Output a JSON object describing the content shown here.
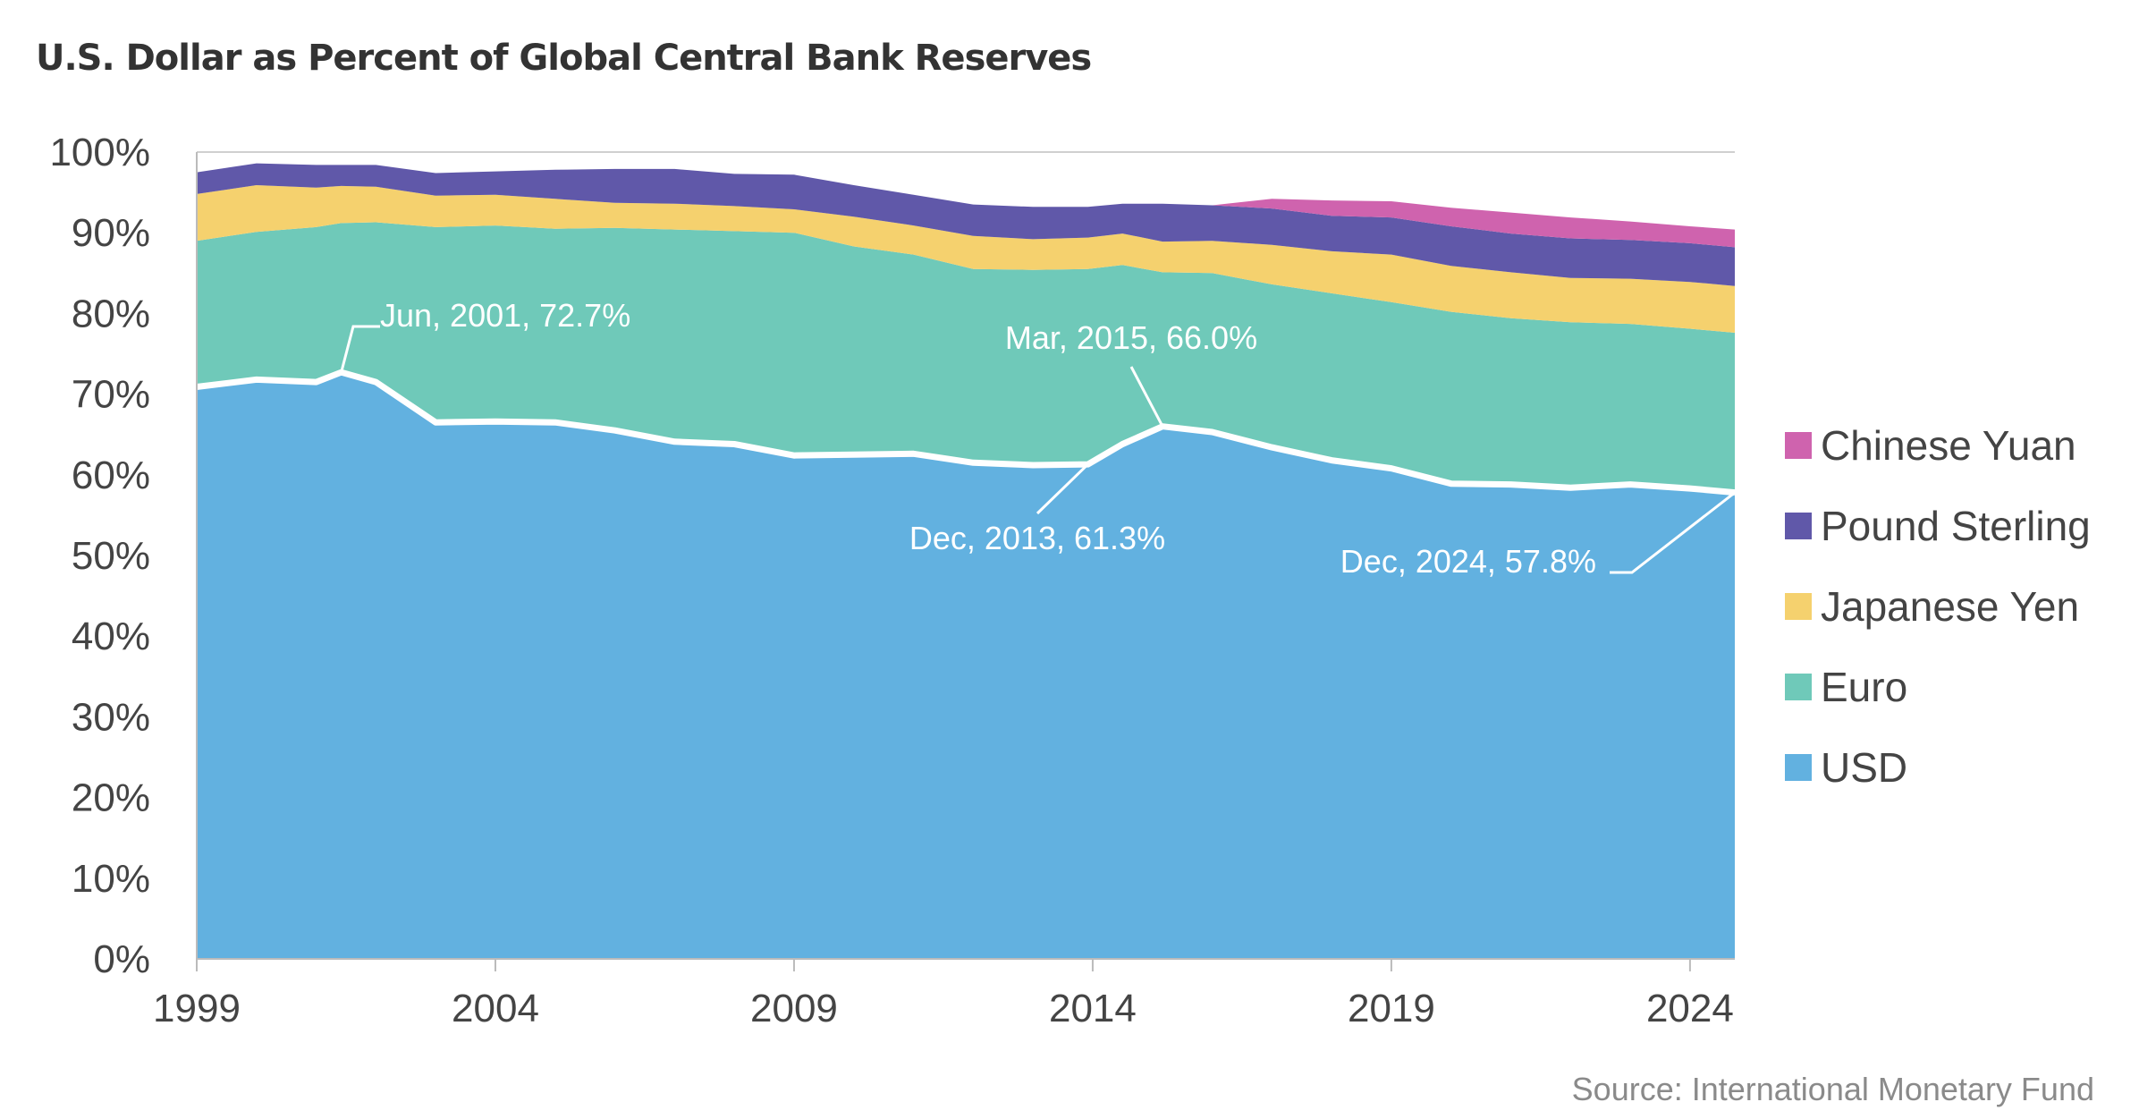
{
  "chart_data": {
    "type": "area",
    "title": "U.S. Dollar as Percent of Global Central Bank Reserves",
    "source": "Source: International Monetary Fund",
    "xlabel": "",
    "ylabel": "",
    "xlim": [
      1999,
      2024.75
    ],
    "ylim": [
      0,
      100
    ],
    "x_ticks": [
      "1999",
      "2004",
      "2009",
      "2014",
      "2019",
      "2024"
    ],
    "y_ticks": [
      "0%",
      "10%",
      "20%",
      "30%",
      "40%",
      "50%",
      "60%",
      "70%",
      "80%",
      "90%",
      "100%"
    ],
    "grid": false,
    "legend_position": "right",
    "stacked": true,
    "x": [
      1999.0,
      2000.0,
      2001.0,
      2001.42,
      2002.0,
      2003.0,
      2004.0,
      2005.0,
      2006.0,
      2007.0,
      2008.0,
      2009.0,
      2010.0,
      2011.0,
      2012.0,
      2013.0,
      2013.92,
      2014.5,
      2015.17,
      2016.0,
      2017.0,
      2018.0,
      2019.0,
      2020.0,
      2021.0,
      2022.0,
      2023.0,
      2024.0,
      2024.75
    ],
    "series": [
      {
        "name": "USD",
        "color": "#62b1e0",
        "values": [
          70.9,
          71.8,
          71.5,
          72.7,
          71.5,
          66.5,
          66.6,
          66.5,
          65.5,
          64.1,
          63.8,
          62.4,
          62.5,
          62.6,
          61.5,
          61.2,
          61.3,
          63.8,
          66.0,
          65.3,
          63.4,
          61.8,
          60.8,
          58.9,
          58.8,
          58.4,
          58.8,
          58.3,
          57.8
        ]
      },
      {
        "name": "Euro",
        "color": "#6fc9b9",
        "values": [
          18.1,
          18.3,
          19.2,
          18.5,
          19.8,
          24.2,
          24.3,
          24.0,
          25.1,
          26.3,
          26.4,
          27.6,
          25.8,
          24.7,
          24.0,
          24.2,
          24.2,
          22.2,
          19.1,
          19.7,
          20.2,
          20.7,
          20.6,
          21.3,
          20.6,
          20.5,
          19.9,
          19.8,
          19.8
        ]
      },
      {
        "name": "Japanese Yen",
        "color": "#f5d16e",
        "values": [
          5.8,
          5.8,
          4.9,
          4.6,
          4.4,
          3.9,
          3.8,
          3.7,
          3.1,
          3.2,
          3.1,
          2.9,
          3.7,
          3.6,
          4.1,
          3.8,
          3.9,
          3.9,
          3.8,
          4.0,
          4.9,
          5.2,
          5.9,
          5.7,
          5.7,
          5.5,
          5.6,
          5.8,
          5.8
        ]
      },
      {
        "name": "Pound Sterling",
        "color": "#6058a9",
        "values": [
          2.7,
          2.7,
          2.8,
          2.6,
          2.7,
          2.8,
          2.9,
          3.6,
          4.2,
          4.3,
          4.0,
          4.3,
          3.9,
          3.8,
          3.9,
          4.0,
          3.8,
          3.7,
          4.7,
          4.4,
          4.5,
          4.4,
          4.6,
          4.9,
          4.8,
          4.9,
          4.8,
          4.8,
          4.8
        ]
      },
      {
        "name": "Chinese Yuan",
        "color": "#cf63ae",
        "values": [
          0,
          0,
          0,
          0,
          0,
          0,
          0,
          0,
          0,
          0,
          0,
          0,
          0,
          0,
          0,
          0,
          0,
          0,
          0,
          0,
          1.2,
          1.9,
          2.0,
          2.3,
          2.6,
          2.6,
          2.3,
          2.1,
          2.2
        ]
      }
    ],
    "legend_order": [
      "Chinese Yuan",
      "Pound Sterling",
      "Japanese Yen",
      "Euro",
      "USD"
    ],
    "annotations": [
      {
        "text": "Jun, 2001, 72.7%",
        "x": 2001.42,
        "y": 72.7
      },
      {
        "text": "Dec, 2013, 61.3%",
        "x": 2013.92,
        "y": 61.3
      },
      {
        "text": "Mar, 2015, 66.0%",
        "x": 2015.17,
        "y": 66.0
      },
      {
        "text": "Dec, 2024, 57.8%",
        "x": 2024.75,
        "y": 57.8
      }
    ]
  }
}
